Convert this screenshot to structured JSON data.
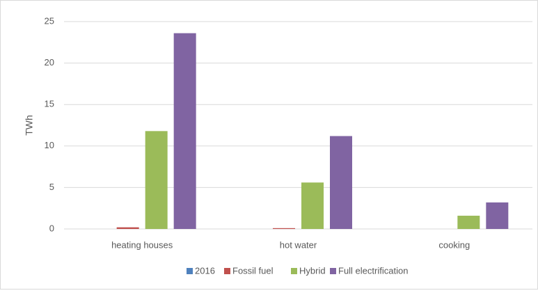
{
  "chart_data": {
    "type": "bar",
    "y_label": "TWh",
    "categories": [
      "heating houses",
      "hot water",
      "cooking"
    ],
    "series": [
      {
        "name": "2016",
        "color": "#4f81bd",
        "values": [
          0,
          0,
          0
        ]
      },
      {
        "name": "Fossil fuel",
        "color": "#c0504d",
        "values": [
          0.2,
          0.1,
          0
        ]
      },
      {
        "name": "Hybrid",
        "color": "#9bbb59",
        "values": [
          11.8,
          5.6,
          1.6
        ]
      },
      {
        "name": "Full electrification",
        "color": "#8064a2",
        "values": [
          23.6,
          11.2,
          3.2
        ]
      }
    ],
    "ylim": [
      0,
      25
    ],
    "yticks": [
      0,
      5,
      10,
      15,
      20,
      25
    ],
    "grid": true,
    "legend": "bottom"
  }
}
